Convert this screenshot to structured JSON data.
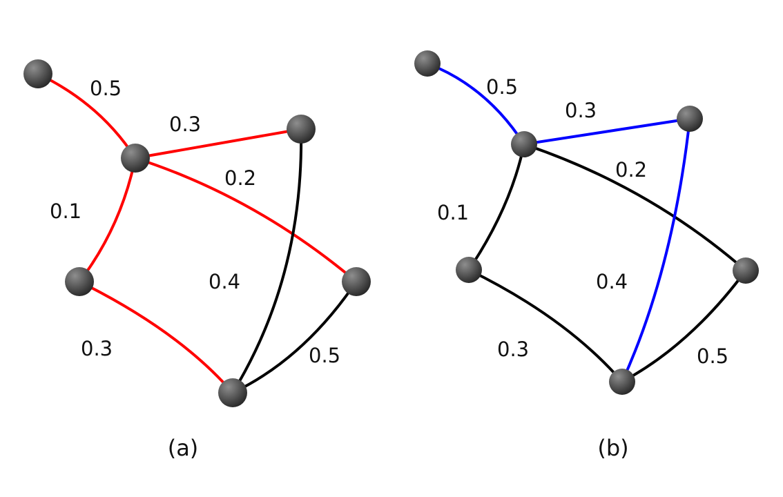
{
  "colors": {
    "tree_a": "#ff0000",
    "tree_b": "#0000ff",
    "edge_default": "#000000",
    "node_light": "#8e8e8e",
    "node_dark": "#262626"
  },
  "panels": [
    {
      "caption": "(a)",
      "highlight": "tree_a",
      "edges": [
        {
          "from": "top",
          "to": "hub",
          "weight": "0.5",
          "highlighted": true
        },
        {
          "from": "hub",
          "to": "upper-right",
          "weight": "0.3",
          "highlighted": true
        },
        {
          "from": "hub",
          "to": "right",
          "weight": "0.2",
          "highlighted": true
        },
        {
          "from": "hub",
          "to": "left",
          "weight": "0.1",
          "highlighted": true
        },
        {
          "from": "left",
          "to": "bottom",
          "weight": "0.3",
          "highlighted": true
        },
        {
          "from": "upper-right",
          "to": "bottom",
          "weight": "0.4",
          "highlighted": false
        },
        {
          "from": "right",
          "to": "bottom",
          "weight": "0.5",
          "highlighted": false
        }
      ]
    },
    {
      "caption": "(b)",
      "highlight": "tree_b",
      "edges": [
        {
          "from": "top",
          "to": "hub",
          "weight": "0.5",
          "highlighted": true
        },
        {
          "from": "hub",
          "to": "upper-right",
          "weight": "0.3",
          "highlighted": true
        },
        {
          "from": "hub",
          "to": "right",
          "weight": "0.2",
          "highlighted": false
        },
        {
          "from": "hub",
          "to": "left",
          "weight": "0.1",
          "highlighted": false
        },
        {
          "from": "left",
          "to": "bottom",
          "weight": "0.3",
          "highlighted": false
        },
        {
          "from": "upper-right",
          "to": "bottom",
          "weight": "0.4",
          "highlighted": true
        },
        {
          "from": "right",
          "to": "bottom",
          "weight": "0.5",
          "highlighted": false
        }
      ]
    }
  ]
}
